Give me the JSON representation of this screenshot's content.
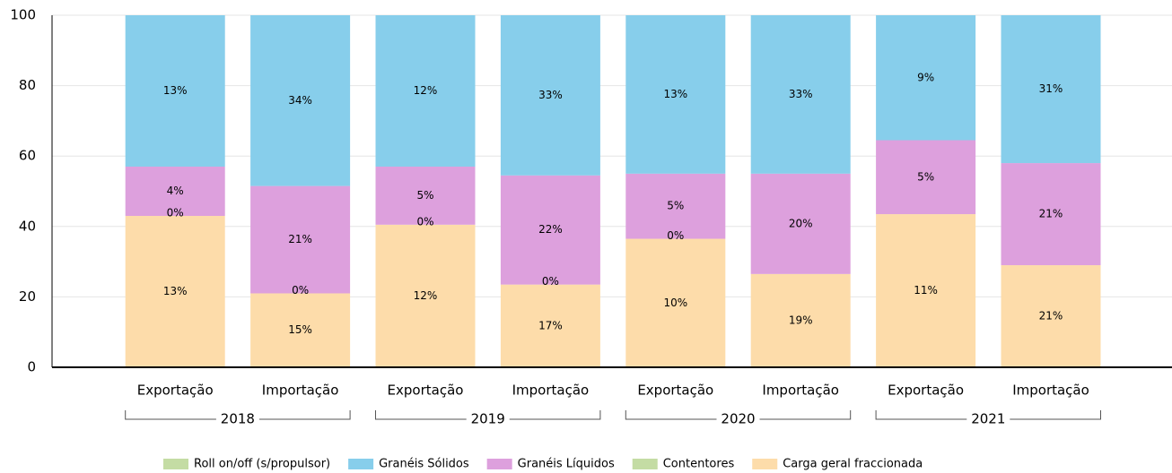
{
  "chart_data": {
    "type": "stacked_bar",
    "categories": [
      "Exportação",
      "Importação",
      "Exportação",
      "Importação",
      "Exportação",
      "Importação",
      "Exportação",
      "Importação"
    ],
    "groups": [
      "2018",
      "2019",
      "2020",
      "2021"
    ],
    "ylim": [
      0,
      100
    ],
    "yticks": [
      0,
      20,
      40,
      60,
      80,
      100
    ],
    "grid": true,
    "legend": "bottom",
    "series": [
      {
        "name": "Carga geral fraccionada",
        "color": "#fddcaa",
        "values": [
          43,
          21,
          40.5,
          23.5,
          36.5,
          26.5,
          43.5,
          29
        ],
        "share_labels": [
          "13%",
          "15%",
          "12%",
          "17%",
          "10%",
          "19%",
          "11%",
          "21%"
        ]
      },
      {
        "name": "Contentores",
        "color": "#c4dca4",
        "values": [
          0,
          0,
          0,
          0,
          0,
          0,
          0,
          0
        ],
        "share_labels": [
          "0%",
          "0%",
          "0%",
          "0%",
          "0%",
          null,
          null,
          null
        ]
      },
      {
        "name": "Granéis Líquidos",
        "color": "#dda0dd",
        "values": [
          14,
          30.5,
          16.5,
          31,
          18.5,
          28.5,
          21,
          29
        ],
        "share_labels": [
          "4%",
          "21%",
          "5%",
          "22%",
          "5%",
          "20%",
          "5%",
          "21%"
        ]
      },
      {
        "name": "Granéis Sólidos",
        "color": "#87ceeb",
        "values": [
          43,
          48.5,
          43,
          45.5,
          45,
          45,
          35.5,
          42
        ],
        "share_labels": [
          "13%",
          "34%",
          "12%",
          "33%",
          "13%",
          "33%",
          "9%",
          "31%"
        ]
      },
      {
        "name": "Roll on/off (s/propulsor)",
        "color": "#c4dca4",
        "values": [
          0,
          0,
          0,
          0,
          0,
          0,
          0,
          0
        ]
      }
    ],
    "legend_order": [
      4,
      3,
      2,
      1,
      0
    ]
  }
}
